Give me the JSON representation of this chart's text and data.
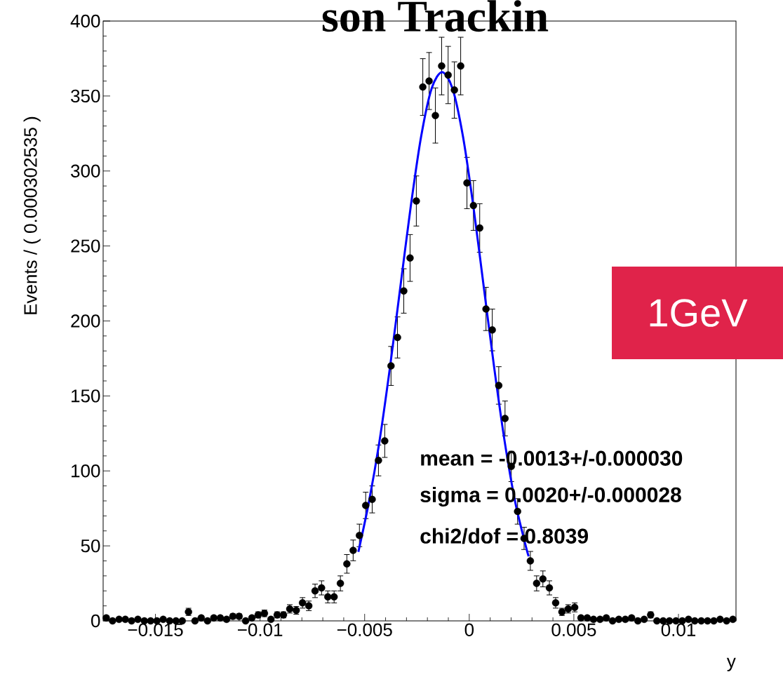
{
  "chart_data": {
    "type": "scatter",
    "title": "son Trackin",
    "xlabel": "y",
    "ylabel": "Events / ( 0.000302535 )",
    "annotations": [
      "mean = -0.0013+/-0.000030",
      "sigma = 0.0020+/-0.000028",
      "chi2/dof = 0.8039",
      "1GeV"
    ],
    "xlim": [
      -0.0175,
      0.01275
    ],
    "ylim": [
      0,
      400
    ],
    "xticks": [
      {
        "value": -0.015,
        "label": "−0.015"
      },
      {
        "value": -0.01,
        "label": "−0.01"
      },
      {
        "value": -0.005,
        "label": "−0.005"
      },
      0,
      0.005,
      0.01
    ],
    "yticks": [
      0,
      50,
      100,
      150,
      200,
      250,
      300,
      350,
      400
    ],
    "series": [
      {
        "marker": "circle",
        "color": "#000000",
        "x": [
          -0.01735,
          -0.01705,
          -0.01674,
          -0.01644,
          -0.01614,
          -0.01584,
          -0.01553,
          -0.01523,
          -0.01493,
          -0.01463,
          -0.01432,
          -0.01402,
          -0.01372,
          -0.01342,
          -0.01311,
          -0.01281,
          -0.01251,
          -0.01221,
          -0.0119,
          -0.0116,
          -0.0113,
          -0.011,
          -0.01069,
          -0.01039,
          -0.01009,
          -0.00979,
          -0.00948,
          -0.00918,
          -0.00888,
          -0.00858,
          -0.00827,
          -0.00797,
          -0.00767,
          -0.00737,
          -0.00706,
          -0.00676,
          -0.00646,
          -0.00616,
          -0.00585,
          -0.00555,
          -0.00525,
          -0.00495,
          -0.00464,
          -0.00434,
          -0.00404,
          -0.00374,
          -0.00343,
          -0.00313,
          -0.00283,
          -0.00253,
          -0.00222,
          -0.00192,
          -0.00162,
          -0.00132,
          -0.00101,
          -0.00071,
          -0.00041,
          -0.00011,
          0.0002,
          0.0005,
          0.0008,
          0.0011,
          0.00141,
          0.00171,
          0.00201,
          0.00231,
          0.00262,
          0.00292,
          0.00322,
          0.00352,
          0.00383,
          0.00413,
          0.00443,
          0.00473,
          0.00504,
          0.00534,
          0.00564,
          0.00594,
          0.00625,
          0.00655,
          0.00685,
          0.00715,
          0.00746,
          0.00776,
          0.00806,
          0.00836,
          0.00867,
          0.00897,
          0.00927,
          0.00957,
          0.00988,
          0.01018,
          0.01048,
          0.01078,
          0.01109,
          0.01139,
          0.01169,
          0.01199,
          0.0123,
          0.0126
        ],
        "values": [
          2,
          0,
          1,
          1,
          0,
          1,
          0,
          0,
          0,
          1,
          0,
          0,
          0,
          6,
          0,
          2,
          0,
          2,
          2,
          1,
          3,
          3,
          0,
          2,
          4,
          5,
          1,
          4,
          4,
          8,
          7,
          12,
          10,
          20,
          22,
          16,
          16,
          25,
          38,
          47,
          57,
          77,
          81,
          107,
          120,
          170,
          189,
          220,
          242,
          280,
          356,
          360,
          337,
          370,
          364,
          354,
          370,
          292,
          277,
          262,
          208,
          194,
          157,
          135,
          103,
          73,
          55,
          40,
          25,
          28,
          22,
          12,
          6,
          8,
          9,
          2,
          2,
          1,
          1,
          2,
          0,
          1,
          1,
          2,
          0,
          1,
          4,
          0,
          0,
          0,
          0,
          0,
          1,
          0,
          0,
          0,
          0,
          1,
          0,
          1
        ],
        "errors": [
          1.4,
          null,
          1,
          1,
          null,
          1,
          null,
          null,
          null,
          1,
          null,
          null,
          null,
          2.4,
          null,
          1.4,
          null,
          1.4,
          1.4,
          1,
          1.7,
          1.7,
          null,
          1.4,
          2,
          2.2,
          1,
          2,
          2,
          2.8,
          2.6,
          3.5,
          3.2,
          4.5,
          4.7,
          4,
          4,
          5,
          6.2,
          6.9,
          7.5,
          8.8,
          9,
          10.3,
          11,
          13,
          13.7,
          14.8,
          15.6,
          16.7,
          18.9,
          19,
          18.4,
          19.2,
          19.1,
          18.8,
          19.2,
          17.1,
          16.6,
          16.2,
          14.4,
          13.9,
          12.5,
          11.6,
          10.1,
          8.5,
          7.4,
          6.3,
          5,
          5.3,
          4.7,
          3.5,
          2.4,
          2.8,
          3,
          1.4,
          1.4,
          1,
          1,
          1.4,
          null,
          1,
          1,
          1.4,
          null,
          1,
          2,
          null,
          null,
          null,
          null,
          null,
          1,
          null,
          null,
          null,
          null,
          1,
          null,
          1
        ]
      },
      {
        "type": "line",
        "marker": "none",
        "color": "#0000ff",
        "x": [
          -0.0053,
          -0.0048,
          -0.0043,
          -0.0038,
          -0.0033,
          -0.0028,
          -0.0023,
          -0.0018,
          -0.0013,
          -0.0008,
          -0.0003,
          0.0002,
          0.0007,
          0.0012,
          0.0017,
          0.0022,
          0.0027,
          0.00284
        ],
        "values": [
          46,
          79,
          119,
          168,
          222,
          276,
          323,
          355,
          366,
          355,
          323,
          276,
          222,
          168,
          119,
          79,
          50,
          43
        ]
      }
    ]
  }
}
